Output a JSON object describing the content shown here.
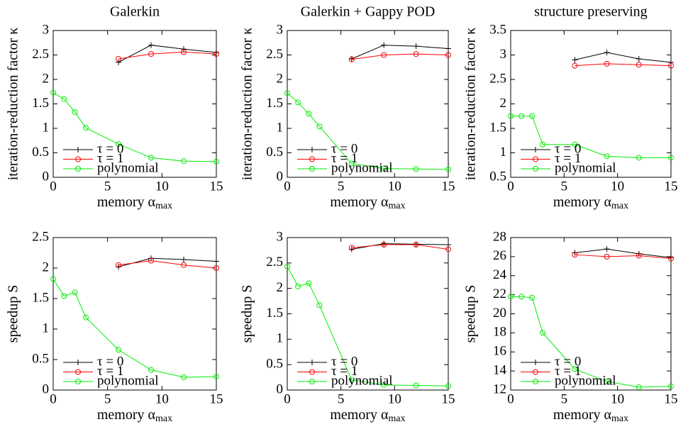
{
  "chart_data": [
    {
      "type": "line",
      "title": "Galerkin",
      "y_label": "iteration-reduction factor κ",
      "x_label": {
        "text": "memory α",
        "subscript": "max"
      },
      "xlim": [
        0,
        15
      ],
      "xticks": [
        0,
        5,
        10,
        15
      ],
      "ylim": [
        0,
        3
      ],
      "yticks": [
        0,
        0.5,
        1,
        1.5,
        2,
        2.5,
        3
      ],
      "legend": "lower left",
      "series": [
        {
          "name": "τ = 0",
          "color": "#000000",
          "marker": "plus",
          "x": [
            6,
            9,
            12,
            15
          ],
          "values": [
            2.35,
            2.7,
            2.62,
            2.55
          ]
        },
        {
          "name": "τ = 1",
          "color": "#ff0000",
          "marker": "circle",
          "x": [
            6,
            9,
            12,
            15
          ],
          "values": [
            2.42,
            2.52,
            2.56,
            2.52
          ]
        },
        {
          "name": "polynomial",
          "color": "#00ee00",
          "marker": "circle",
          "x": [
            0,
            1,
            2,
            3,
            6,
            9,
            12,
            15
          ],
          "values": [
            1.73,
            1.6,
            1.33,
            1.01,
            0.68,
            0.4,
            0.33,
            0.32
          ]
        }
      ]
    },
    {
      "type": "line",
      "title": "Galerkin + Gappy POD",
      "y_label": "iteration-reduction factor κ",
      "x_label": {
        "text": "memory α",
        "subscript": "max"
      },
      "xlim": [
        0,
        15
      ],
      "xticks": [
        0,
        5,
        10,
        15
      ],
      "ylim": [
        0,
        3
      ],
      "yticks": [
        0,
        0.5,
        1,
        1.5,
        2,
        2.5,
        3
      ],
      "legend": "lower left",
      "series": [
        {
          "name": "τ = 0",
          "color": "#000000",
          "marker": "plus",
          "x": [
            6,
            9,
            12,
            15
          ],
          "values": [
            2.42,
            2.7,
            2.68,
            2.63
          ]
        },
        {
          "name": "τ = 1",
          "color": "#ff0000",
          "marker": "circle",
          "x": [
            6,
            9,
            12,
            15
          ],
          "values": [
            2.41,
            2.5,
            2.52,
            2.5
          ]
        },
        {
          "name": "polynomial",
          "color": "#00ee00",
          "marker": "circle",
          "x": [
            0,
            1,
            2,
            3,
            6,
            9,
            12,
            15
          ],
          "values": [
            1.72,
            1.53,
            1.3,
            1.04,
            0.28,
            0.18,
            0.17,
            0.16
          ]
        }
      ]
    },
    {
      "type": "line",
      "title": "structure preserving",
      "y_label": "iteration-reduction factor κ",
      "x_label": {
        "text": "memory α",
        "subscript": "max"
      },
      "xlim": [
        0,
        15
      ],
      "xticks": [
        0,
        5,
        10,
        15
      ],
      "ylim": [
        0.5,
        3.5
      ],
      "yticks": [
        0.5,
        1,
        1.5,
        2,
        2.5,
        3,
        3.5
      ],
      "legend": "lower left",
      "series": [
        {
          "name": "τ = 0",
          "color": "#000000",
          "marker": "plus",
          "x": [
            6,
            9,
            12,
            15
          ],
          "values": [
            2.9,
            3.05,
            2.92,
            2.85
          ]
        },
        {
          "name": "τ = 1",
          "color": "#ff0000",
          "marker": "circle",
          "x": [
            6,
            9,
            12,
            15
          ],
          "values": [
            2.78,
            2.82,
            2.8,
            2.78
          ]
        },
        {
          "name": "polynomial",
          "color": "#00ee00",
          "marker": "circle",
          "x": [
            0,
            1,
            2,
            3,
            6,
            9,
            12,
            15
          ],
          "values": [
            1.75,
            1.75,
            1.75,
            1.17,
            1.17,
            0.93,
            0.9,
            0.9
          ]
        }
      ]
    },
    {
      "type": "line",
      "y_label": "speedup S",
      "x_label": {
        "text": "memory α",
        "subscript": "max"
      },
      "xlim": [
        0,
        15
      ],
      "xticks": [
        0,
        5,
        10,
        15
      ],
      "ylim": [
        0,
        2.5
      ],
      "yticks": [
        0,
        0.5,
        1,
        1.5,
        2,
        2.5
      ],
      "legend": "lower left",
      "series": [
        {
          "name": "τ = 0",
          "color": "#000000",
          "marker": "plus",
          "x": [
            6,
            9,
            12,
            15
          ],
          "values": [
            2.02,
            2.16,
            2.14,
            2.11
          ]
        },
        {
          "name": "τ = 1",
          "color": "#ff0000",
          "marker": "circle",
          "x": [
            6,
            9,
            12,
            15
          ],
          "values": [
            2.05,
            2.12,
            2.05,
            2.0
          ]
        },
        {
          "name": "polynomial",
          "color": "#00ee00",
          "marker": "circle",
          "x": [
            0,
            1,
            2,
            3,
            6,
            9,
            12,
            15
          ],
          "values": [
            1.82,
            1.54,
            1.6,
            1.19,
            0.66,
            0.33,
            0.21,
            0.22
          ]
        }
      ]
    },
    {
      "type": "line",
      "y_label": "speedup S",
      "x_label": {
        "text": "memory α",
        "subscript": "max"
      },
      "xlim": [
        0,
        15
      ],
      "xticks": [
        0,
        5,
        10,
        15
      ],
      "ylim": [
        0,
        3
      ],
      "yticks": [
        0,
        0.5,
        1,
        1.5,
        2,
        2.5,
        3
      ],
      "legend": "lower left",
      "series": [
        {
          "name": "τ = 0",
          "color": "#000000",
          "marker": "plus",
          "x": [
            6,
            9,
            12,
            15
          ],
          "values": [
            2.77,
            2.88,
            2.87,
            2.86
          ]
        },
        {
          "name": "τ = 1",
          "color": "#ff0000",
          "marker": "circle",
          "x": [
            6,
            9,
            12,
            15
          ],
          "values": [
            2.8,
            2.86,
            2.86,
            2.77
          ]
        },
        {
          "name": "polynomial",
          "color": "#00ee00",
          "marker": "circle",
          "x": [
            0,
            1,
            2,
            3,
            6,
            9,
            12,
            15
          ],
          "values": [
            2.43,
            2.04,
            2.1,
            1.67,
            0.2,
            0.1,
            0.09,
            0.08
          ]
        }
      ]
    },
    {
      "type": "line",
      "y_label": "speedup S",
      "x_label": {
        "text": "memory α",
        "subscript": "max"
      },
      "xlim": [
        0,
        15
      ],
      "xticks": [
        0,
        5,
        10,
        15
      ],
      "ylim": [
        12,
        28
      ],
      "yticks": [
        12,
        14,
        16,
        18,
        20,
        22,
        24,
        26,
        28
      ],
      "legend": "lower left",
      "series": [
        {
          "name": "τ = 0",
          "color": "#000000",
          "marker": "plus",
          "x": [
            6,
            9,
            12,
            15
          ],
          "values": [
            26.4,
            26.8,
            26.3,
            25.9
          ]
        },
        {
          "name": "τ = 1",
          "color": "#ff0000",
          "marker": "circle",
          "x": [
            6,
            9,
            12,
            15
          ],
          "values": [
            26.2,
            26.0,
            26.1,
            25.8
          ]
        },
        {
          "name": "polynomial",
          "color": "#00ee00",
          "marker": "circle",
          "x": [
            0,
            1,
            2,
            3,
            6,
            9,
            12,
            15
          ],
          "values": [
            21.8,
            21.8,
            21.7,
            18,
            14.2,
            12.9,
            12.3,
            12.4
          ]
        }
      ]
    }
  ]
}
